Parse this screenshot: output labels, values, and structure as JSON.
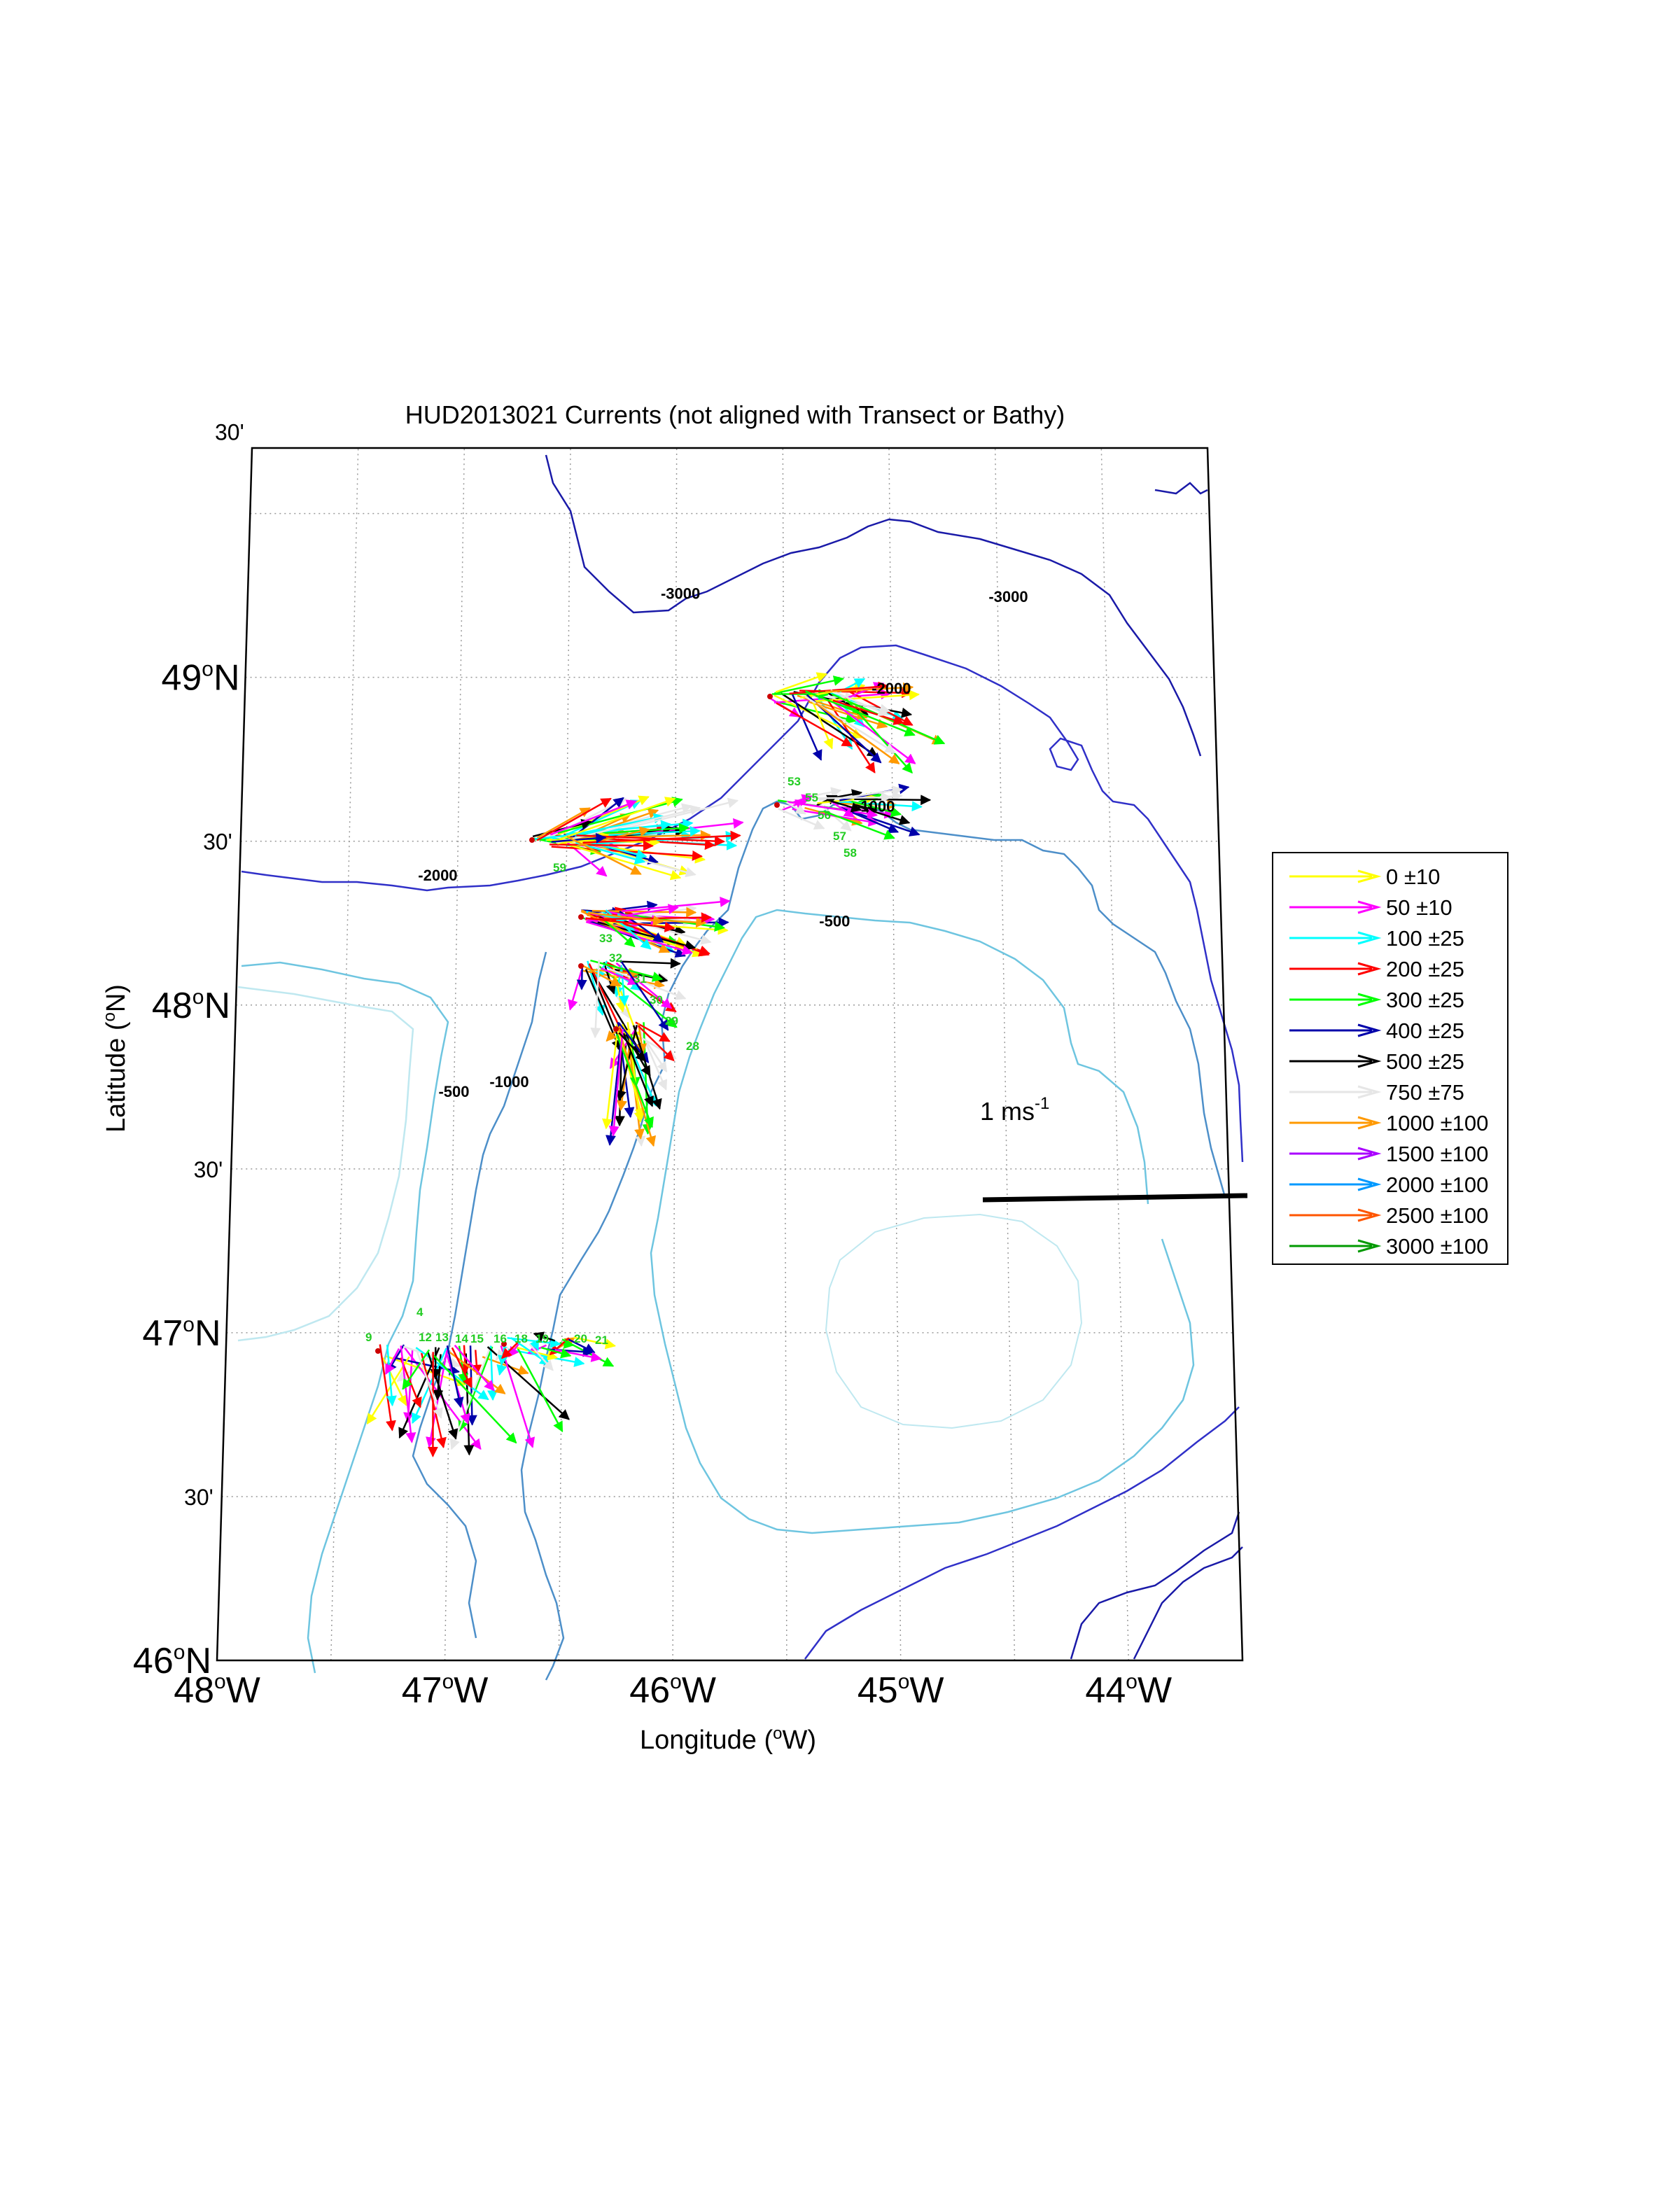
{
  "title": "HUD2013021 Currents (not aligned with Transect or Bathy)",
  "axes": {
    "xlabel_main": "Longitude (",
    "xlabel_sup": "o",
    "xlabel_end": "W)",
    "ylabel_main": "Latitude (",
    "ylabel_sup": "o",
    "ylabel_end": "N)",
    "lat_ticks": [
      {
        "lat": 49.75,
        "label": "30'",
        "major": false
      },
      {
        "lat": 49.0,
        "deg": "49",
        "hemi": "N",
        "major": true
      },
      {
        "lat": 48.5,
        "label": "30'",
        "major": false
      },
      {
        "lat": 48.0,
        "deg": "48",
        "hemi": "N",
        "major": true
      },
      {
        "lat": 47.5,
        "label": "30'",
        "major": false
      },
      {
        "lat": 47.0,
        "deg": "47",
        "hemi": "N",
        "major": true
      },
      {
        "lat": 46.5,
        "label": "30'",
        "major": false
      },
      {
        "lat": 46.0,
        "deg": "46",
        "hemi": "N",
        "major": true
      }
    ],
    "lon_ticks": [
      {
        "lon": -48,
        "deg": "48",
        "hemi": "W"
      },
      {
        "lon": -47,
        "deg": "47",
        "hemi": "W"
      },
      {
        "lon": -46,
        "deg": "46",
        "hemi": "W"
      },
      {
        "lon": -45,
        "deg": "45",
        "hemi": "W"
      },
      {
        "lon": -44,
        "deg": "44",
        "hemi": "W"
      }
    ],
    "degree_symbol": "o",
    "lat_range": [
      46.0,
      49.7
    ],
    "lon_range": [
      -48.0,
      -43.5
    ],
    "grid": true
  },
  "contour_labels": [
    {
      "text": "-3000",
      "lon": -45.98,
      "lat": 49.24
    },
    {
      "text": "-3000",
      "lon": -44.45,
      "lat": 49.23
    },
    {
      "text": "-2000",
      "lon": -45.0,
      "lat": 48.95
    },
    {
      "text": "-2000",
      "lon": -47.09,
      "lat": 48.38
    },
    {
      "text": "-1000",
      "lon": -45.08,
      "lat": 48.59
    },
    {
      "text": "-500",
      "lon": -45.27,
      "lat": 48.24
    },
    {
      "text": "-500",
      "lon": -47.0,
      "lat": 47.72
    },
    {
      "text": "-1000",
      "lon": -46.75,
      "lat": 47.75
    }
  ],
  "station_labels": [
    "4",
    "9",
    "12",
    "13",
    "14",
    "15",
    "16",
    "18",
    "19",
    "20",
    "21",
    "28",
    "29",
    "30",
    "31",
    "32",
    "33",
    "53",
    "55",
    "56",
    "57",
    "58",
    "59"
  ],
  "legend": [
    {
      "label": "0 ±10",
      "color": "#ffff00"
    },
    {
      "label": "50 ±10",
      "color": "#ff00ff"
    },
    {
      "label": "100 ±25",
      "color": "#00ffff"
    },
    {
      "label": "200 ±25",
      "color": "#ff0000"
    },
    {
      "label": "300 ±25",
      "color": "#00ff00"
    },
    {
      "label": "400 ±25",
      "color": "#0000aa"
    },
    {
      "label": "500 ±25",
      "color": "#000000"
    },
    {
      "label": "750 ±75",
      "color": "#e6e6e6"
    },
    {
      "label": "1000 ±100",
      "color": "#ff9900"
    },
    {
      "label": "1500 ±100",
      "color": "#aa00ff"
    },
    {
      "label": "2000 ±100",
      "color": "#0099ff"
    },
    {
      "label": "2500 ±100",
      "color": "#ff5500"
    },
    {
      "label": "3000 ±100",
      "color": "#009900"
    }
  ],
  "scale": {
    "text": "1 ms",
    "sup": "-1"
  },
  "colors": {
    "contour_deep": "#1a1aa8",
    "contour_2000": "#3030c8",
    "contour_1000": "#4d8fc9",
    "contour_500": "#6ec5e0",
    "contour_shallow": "#bfe8f0",
    "grid": "#999999"
  }
}
